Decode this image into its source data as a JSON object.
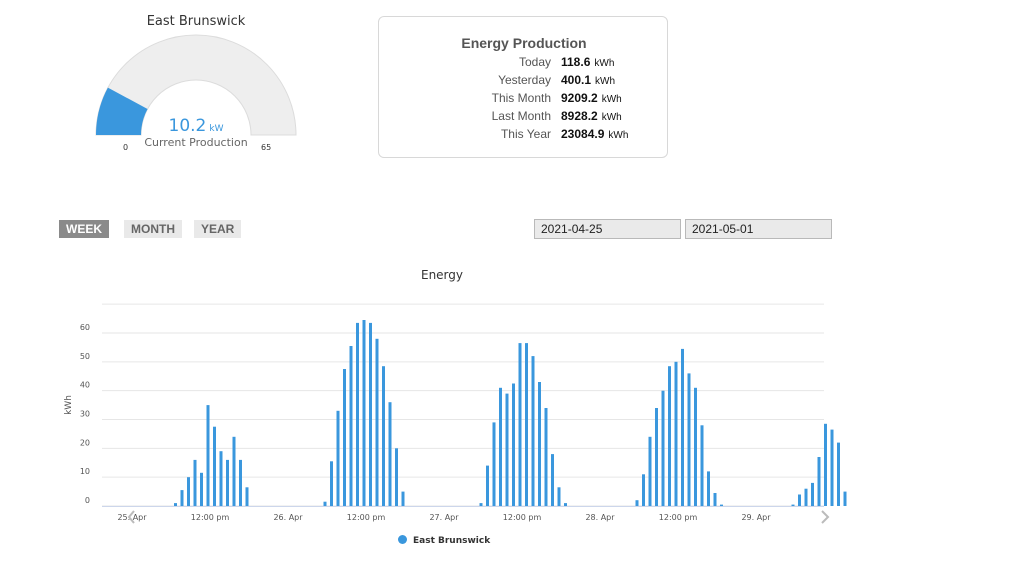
{
  "gauge": {
    "title": "East Brunswick",
    "value": "10.2",
    "value_num": 10.2,
    "unit": "kW",
    "sublabel": "Current Production",
    "min": "0",
    "max": "65",
    "min_num": 0,
    "max_num": 65,
    "fill_color": "#3a97dd",
    "track_color": "#eeeeee"
  },
  "production": {
    "title": "Energy Production",
    "rows": [
      {
        "label": "Today",
        "value": "118.6",
        "unit": "kWh"
      },
      {
        "label": "Yesterday",
        "value": "400.1",
        "unit": "kWh"
      },
      {
        "label": "This Month",
        "value": "9209.2",
        "unit": "kWh"
      },
      {
        "label": "Last Month",
        "value": "8928.2",
        "unit": "kWh"
      },
      {
        "label": "This Year",
        "value": "23084.9",
        "unit": "kWh"
      }
    ]
  },
  "periods": {
    "week": "WEEK",
    "month": "MONTH",
    "year": "YEAR",
    "active": "week"
  },
  "dates": {
    "from": "2021-04-25",
    "to": "2021-05-01"
  },
  "chart_data": {
    "type": "bar",
    "title": "Energy",
    "ylabel": "kWh",
    "ylim": [
      0,
      70
    ],
    "yticks": [
      0,
      10,
      20,
      30,
      40,
      50,
      60
    ],
    "grid": true,
    "x_unit": "hour",
    "x_range": [
      0,
      111
    ],
    "x_tick_labels": [
      {
        "hour": 0,
        "label": "25. Apr"
      },
      {
        "hour": 12,
        "label": "12:00 pm"
      },
      {
        "hour": 24,
        "label": "26. Apr"
      },
      {
        "hour": 36,
        "label": "12:00 pm"
      },
      {
        "hour": 48,
        "label": "27. Apr"
      },
      {
        "hour": 60,
        "label": "12:00 pm"
      },
      {
        "hour": 72,
        "label": "28. Apr"
      },
      {
        "hour": 84,
        "label": "12:00 pm"
      },
      {
        "hour": 96,
        "label": "29. Apr"
      }
    ],
    "series": [
      {
        "name": "East Brunswick",
        "color": "#3a97dd",
        "points": [
          [
            7,
            1
          ],
          [
            8,
            5.5
          ],
          [
            9,
            10
          ],
          [
            10,
            16
          ],
          [
            11,
            11.5
          ],
          [
            12,
            35
          ],
          [
            13,
            27.5
          ],
          [
            14,
            19
          ],
          [
            15,
            16
          ],
          [
            16,
            24
          ],
          [
            17,
            16
          ],
          [
            18,
            6.5
          ],
          [
            30,
            1.5
          ],
          [
            31,
            15.5
          ],
          [
            32,
            33
          ],
          [
            33,
            47.5
          ],
          [
            34,
            55.5
          ],
          [
            35,
            63.5
          ],
          [
            36,
            64.5
          ],
          [
            37,
            63.5
          ],
          [
            38,
            58
          ],
          [
            39,
            48.5
          ],
          [
            40,
            36
          ],
          [
            41,
            20
          ],
          [
            42,
            5
          ],
          [
            54,
            1
          ],
          [
            55,
            14
          ],
          [
            56,
            29
          ],
          [
            57,
            41
          ],
          [
            58,
            39
          ],
          [
            59,
            42.5
          ],
          [
            60,
            56.5
          ],
          [
            61,
            56.5
          ],
          [
            62,
            52
          ],
          [
            63,
            43
          ],
          [
            64,
            34
          ],
          [
            65,
            18
          ],
          [
            66,
            6.5
          ],
          [
            67,
            1
          ],
          [
            78,
            2
          ],
          [
            79,
            11
          ],
          [
            80,
            24
          ],
          [
            81,
            34
          ],
          [
            82,
            40
          ],
          [
            83,
            48.5
          ],
          [
            84,
            50
          ],
          [
            85,
            54.5
          ],
          [
            86,
            46
          ],
          [
            87,
            41
          ],
          [
            88,
            28
          ],
          [
            89,
            12
          ],
          [
            90,
            4.5
          ],
          [
            91,
            0.5
          ],
          [
            102,
            0.5
          ],
          [
            103,
            4
          ],
          [
            104,
            6
          ],
          [
            105,
            8
          ],
          [
            106,
            17
          ],
          [
            107,
            28.5
          ],
          [
            108,
            26.5
          ],
          [
            109,
            22
          ],
          [
            110,
            5
          ]
        ]
      }
    ],
    "legend_position": "bottom-center"
  },
  "nav": {
    "prev_icon": "chevron-left-icon",
    "next_icon": "chevron-right-icon"
  }
}
